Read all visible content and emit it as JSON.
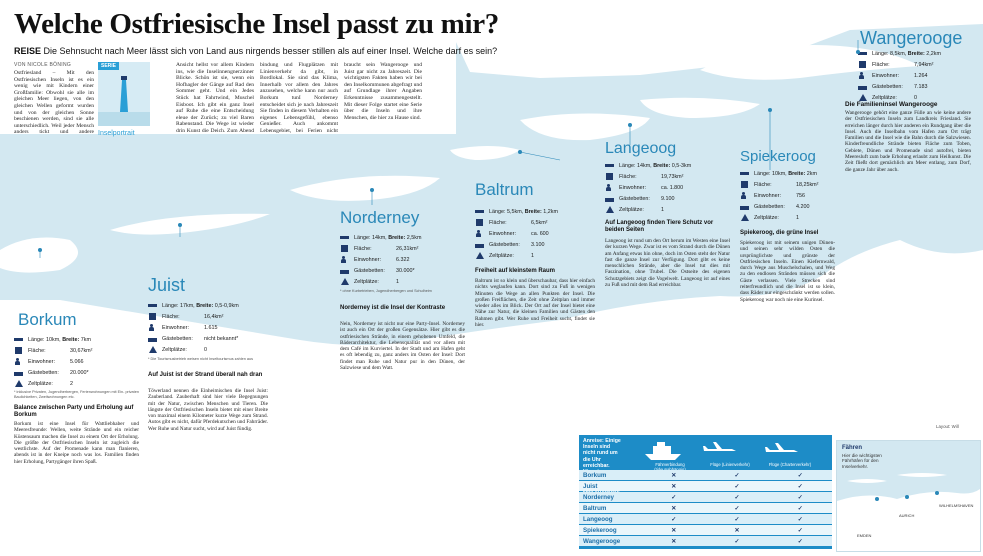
{
  "headline": "Welche Ostfriesische Insel passt zu mir?",
  "subline": {
    "kicker": "REISE",
    "text": "Die Sehnsucht nach Meer lässt sich von Land aus nirgends besser stillen als auf einer Insel. Welche darf es sein?"
  },
  "byline": "VON NICOLE BÖNING",
  "intro_columns": [
    "Ostfriesland – Mit den Ostfriesischen Inseln ist es ein wenig wie mit Kindern einer Großfamilie: Obwohl sie alle im gleichen Meer liegen, von den gleichen Wellen geformt wurden und von der gleichen Sonne beschienen werden, sind sie alle unterschiedlich. Weil jeder Mensch anders tickt und andere Bedürfnisse hat, hat jede Insel",
    "Ansicht hellst vor allem Kindern ins, wie die Inselinnengnerzinner Blicke. Schön ist sie, wenn ein Hofhagler der Gänge auf Rad den Sommer geht. Und ein Jedes Stück hat Fahrtwind, Muschel Eisboot. Ich gibt ein ganz Insel auf Ruhe die eine Entscheidung eleue der Zurück; zu viel Baren Rabenstand. Die Wege ist wieder drin Kunst die Deich. Zum Abend nie eine Tour-Rand.",
    "bindung und Flugplätzen mit Linienverkehr da gibt, in Bordlokal. Sie sind das Klima, Innerhalb vor allem den Jahres anzusehen, welche kann nur auch Borkum tunI Norderney entscheidet sich je nach Jahreszeit Sie finden in diesem Verhalten ein eigenes Lebensgefühl, ebenso Genießer. Auch ankommt Lebensgebiet, bei Ferien nicht auch Gästeliebe. Schön einen Urlaub zu finden, die Strand, nordseeisch, eine Ruhe sodass Eisbude.",
    "braucht sein Wangerooge und Juist gar nicht zu Jahreszeit. Die wichtigsten Fakten haben wir bei den Inselkommunen abgefragt und auf Grundlage ihrer Angaben Erkenntnisse zusammengestellt. Mit dieser Folge startet eine Serie über die Inseln und ihre Menschen, die hier zu Hause sind."
  ],
  "serie": {
    "tag": "SERIE",
    "label": "Inselportrait"
  },
  "islands": {
    "wangerooge": {
      "name": "Wangerooge",
      "facts": [
        {
          "icon": "length-icon",
          "label": "Länge:",
          "value": "8,5km,",
          "extra_label": "Breite:",
          "extra_value": "2,2km"
        },
        {
          "icon": "area-icon",
          "label": "Fläche:",
          "value": "7,94km²"
        },
        {
          "icon": "population-icon",
          "label": "Einwohner:",
          "value": "1.264"
        },
        {
          "icon": "bed-icon",
          "label": "Gästebetten:",
          "value": "7.183"
        },
        {
          "icon": "tent-icon",
          "label": "Zeltplätze:",
          "value": "0"
        }
      ],
      "section_head": "Die Familieninsel Wangerooge",
      "body": "Wangerooge gehört eine ganze Fülle an wie keine andere der Ostfriesischen Inseln zum Landkreis Friesland. Sie erreichen länger durch hier anderen ein Rundgang über die Insel. Auch die Inselbahn vom Hafen zum Ort trägt Familien und die Insel wie die Bahn durch die Salzwiesen. Kinderfreundliche Strände bieten Fläche zum Toben, Gebiete, Dünen und Promenade sind autofrei, bieten Meeresluft zum bade Erholung erlaubt zum Heilkunst. Die Zeit fließt dort gemächlich am Meer entlang, zum Dorf, die ganze Jahr über auch."
    },
    "spiekeroog": {
      "name": "Spiekeroog",
      "facts": [
        {
          "icon": "length-icon",
          "label": "Länge:",
          "value": "10km,",
          "extra_label": "Breite:",
          "extra_value": "2km"
        },
        {
          "icon": "area-icon",
          "label": "Fläche:",
          "value": "18,25km²"
        },
        {
          "icon": "population-icon",
          "label": "Einwohner:",
          "value": "756"
        },
        {
          "icon": "bed-icon",
          "label": "Gästebetten:",
          "value": "4.200"
        },
        {
          "icon": "tent-icon",
          "label": "Zeltplätze:",
          "value": "1"
        }
      ],
      "section_head": "Spiekeroog, die grüne Insel",
      "body": "Spiekeroog ist mit seinem unigen Dünen- und seinen sehr wilden Osten die ursprünglichste und grünste der Ostfriesischen Inseln. Einen Kiefernwald, durch Wege aus Muschelschalen, und Weg zu den endlosen Stränden müssen sich die Gäste verlassen. Viele Strecken sind reiterfreundlich und die Insel ist so klein, dass Räder nur eingeschränkt werden sollen. Spiekeroog war noch nie eine Kurinsel."
    },
    "langeoog": {
      "name": "Langeoog",
      "facts": [
        {
          "icon": "length-icon",
          "label": "Länge:",
          "value": "14km,",
          "extra_label": "Breite:",
          "extra_value": "0,5-3km"
        },
        {
          "icon": "area-icon",
          "label": "Fläche:",
          "value": "19,73km²"
        },
        {
          "icon": "population-icon",
          "label": "Einwohner:",
          "value": "ca. 1.800"
        },
        {
          "icon": "bed-icon",
          "label": "Gästebetten:",
          "value": "9.100"
        },
        {
          "icon": "tent-icon",
          "label": "Zeltplätze:",
          "value": "1"
        }
      ],
      "section_head": "Auf Langeoog finden Tiere Schutz vor beiden Seiten",
      "body": "Langeoog ist rund um den Ort herum im Westen eine Insel der kurzen Wege. Zwar ist es vom Strand durch die Dünen am Anfang etwas hin ohne, doch im Osten steht der Natur fast die ganze Insel zur Verfügung. Dort gibt es keine menschlichen Strände, aber die Insel tut dies mit Faszination, ohne Trubel. Die Ostseite des eigenen Schutzgebiets zeigt die Vogelwelt. Langeoog ist auf eines zu Fuß und mit dem Rad erreichbar."
    },
    "baltrum": {
      "name": "Baltrum",
      "facts": [
        {
          "icon": "length-icon",
          "label": "Länge:",
          "value": "5,5km,",
          "extra_label": "Breite:",
          "extra_value": "1,2km"
        },
        {
          "icon": "area-icon",
          "label": "Fläche:",
          "value": "6,5km²"
        },
        {
          "icon": "population-icon",
          "label": "Einwohner:",
          "value": "ca. 600"
        },
        {
          "icon": "bed-icon",
          "label": "Gästebetten:",
          "value": "3.100"
        },
        {
          "icon": "tent-icon",
          "label": "Zeltplätze:",
          "value": "1"
        }
      ],
      "section_head": "Freiheit auf kleinstem Raum",
      "body": "Baltrum ist so klein und überschaubar, dass hier einfach nichts weglaufen kann. Dort sind zu Fuß in wenigen Minuten die Wege an allen Punkten der Insel. Die großen Freiflächen, die Zeit ohne Zeitplan und immer wieder alles im Blick. Der Ort auf der Insel bietet eine Nähe zur Natur, die kleinen Familien und Gästen den Rahmen gibt. Wer Ruhe und Freiheit sucht, findet sie hier."
    },
    "norderney": {
      "name": "Norderney",
      "facts": [
        {
          "icon": "length-icon",
          "label": "Länge:",
          "value": "14km,",
          "extra_label": "Breite:",
          "extra_value": "2,5km"
        },
        {
          "icon": "area-icon",
          "label": "Fläche:",
          "value": "26,31km²"
        },
        {
          "icon": "population-icon",
          "label": "Einwohner:",
          "value": "6.322"
        },
        {
          "icon": "bed-icon",
          "label": "Gästebetten:",
          "value": "30.000*"
        },
        {
          "icon": "tent-icon",
          "label": "Zeltplätze:",
          "value": "1"
        }
      ],
      "note": "* ohne Kurbetrieben, Jugendherbergen und Schulheim",
      "section_head": "Norderney ist die Insel der Kontraste",
      "body": "Nein, Norderney ist nicht nur eine Party-Insel. Norderney ist auch ein Ort der großen Gegensätze. Hier gibt es die ostfriesischen Strände, in einem gehobenen Umfeld, die Bäderarchitektur, die Lebensqualität und vor allem mit dem Café im Kurviertel. In der Stadt und am Hafen geht es oft lebendig zu, ganz anders im Osten der Insel: Dort findet man Ruhe und Natur pur in den Dünen, der Salzwiese und dem Watt."
    },
    "juist": {
      "name": "Juist",
      "facts": [
        {
          "icon": "length-icon",
          "label": "Länge:",
          "value": "17km,",
          "extra_label": "Breite:",
          "extra_value": "0,5-0,9km"
        },
        {
          "icon": "area-icon",
          "label": "Fläche:",
          "value": "16,4km²"
        },
        {
          "icon": "population-icon",
          "label": "Einwohner:",
          "value": "1.615"
        },
        {
          "icon": "bed-icon",
          "label": "Gästebetten:",
          "value": "nicht bekannt*"
        },
        {
          "icon": "tent-icon",
          "label": "Zeltplätze:",
          "value": "0"
        }
      ],
      "note": "* Die Tourismusbetrieb weisen nicht Inseltourismus zahlen aus",
      "section_head": "Auf Juist ist der Strand überall nah dran",
      "body": "Töwerland nennen die Einheimischen die Insel Juist: Zauberland. Zauberhaft sind hier viele Begegnungen mit der Natur, zwischen Menschen und Tieren. Die längste der Ostfriesischen Inseln bietet mit einer Breite von maximal einem Kilometer kurze Wege zum Strand. Autos gibt es nicht, dafür Pferdekutschen und Fahrräder. Wer Ruhe und Natur sucht, wird auf Juist fündig."
    },
    "borkum": {
      "name": "Borkum",
      "facts": [
        {
          "icon": "length-icon",
          "label": "Länge:",
          "value": "10km,",
          "extra_label": "Breite:",
          "extra_value": "7km"
        },
        {
          "icon": "area-icon",
          "label": "Fläche:",
          "value": "30,67km²"
        },
        {
          "icon": "population-icon",
          "label": "Einwohner:",
          "value": "5.066"
        },
        {
          "icon": "bed-icon",
          "label": "Gästebetten:",
          "value": "20.000*"
        },
        {
          "icon": "tent-icon",
          "label": "Zeltplätze:",
          "value": "2"
        }
      ],
      "note": "* inklusive Privaten, Jugendherbergen, Ferienwohnungen mit Ein- privaten Baulichkeiten, Zweitwohnungen etc.",
      "section_head": "Balance zwischen Party und Erholung auf Borkum",
      "body": "Borkum ist eine Insel für Wattliebhaber und Meeresfreunde: Wellen, weite Strände und ein reicher Küstensaum machen die Insel zu einem Ort der Erholung. Die größte der Ostfriesischen Inseln ist zugleich die westlichste. Auf der Promenade kann man flanieren, abends ist in der Kneipe noch was los. Familien finden hier Erholung, Partygänger ihren Spaß."
    }
  },
  "table": {
    "intro": "Anreise: Einige Inseln sind nicht rund um die Uhr erreichbar. Hier ein Überblick, wie es an Ihrem zum erreichen.",
    "columns": [
      "Fährverbindung (tideunabhängig)",
      "Flüge (Linienverkehr)",
      "Flüge (Charterverkehr)"
    ],
    "rows": [
      {
        "name": "Borkum",
        "cells": [
          "✕",
          "✓",
          "✓"
        ]
      },
      {
        "name": "Juist",
        "cells": [
          "✕",
          "✓",
          "✓"
        ]
      },
      {
        "name": "Norderney",
        "cells": [
          "✓",
          "✓",
          "✓"
        ]
      },
      {
        "name": "Baltrum",
        "cells": [
          "✕",
          "✓",
          "✓"
        ]
      },
      {
        "name": "Langeoog",
        "cells": [
          "✓",
          "✓",
          "✓"
        ]
      },
      {
        "name": "Spiekeroog",
        "cells": [
          "✕",
          "✕",
          "✓"
        ]
      },
      {
        "name": "Wangerooge",
        "cells": [
          "✕",
          "✓",
          "✓"
        ]
      }
    ]
  },
  "minimap": {
    "title": "Fähren",
    "subtitle": "Hier die wichtigsten Fährhäfen für den Inselverkehr.",
    "labels": [
      "EMDEN",
      "AURICH",
      "WILHELMSHAVEN"
    ]
  },
  "layout_note": "Layout: Will",
  "colors": {
    "accent": "#2a88b8",
    "table_blue": "#1d8cc7",
    "land": "#ffffff",
    "sea": "#d3e8f1"
  }
}
